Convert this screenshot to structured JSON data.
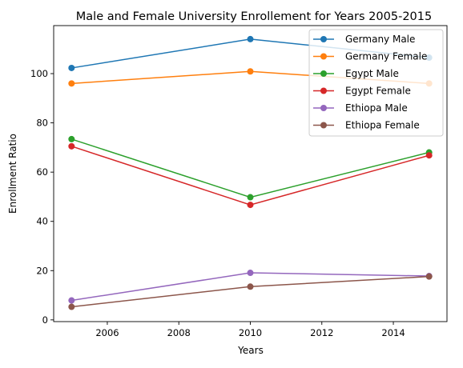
{
  "chart_data": {
    "type": "line",
    "title": "Male and Female University Enrollement for Years 2005-2015",
    "xlabel": "Years",
    "ylabel": "Enrollment Ratio",
    "x": [
      2005,
      2010,
      2015
    ],
    "xlim": [
      2004.5,
      2015.5
    ],
    "ylim": [
      -0.7,
      119.5
    ],
    "xticks": [
      2006,
      2008,
      2010,
      2012,
      2014
    ],
    "yticks": [
      0,
      20,
      40,
      60,
      80,
      100
    ],
    "grid": false,
    "legend_position": "top-right",
    "series": [
      {
        "name": "Germany Male",
        "color": "#1f77b4",
        "values": [
          102.3,
          114.0,
          106.5
        ]
      },
      {
        "name": "Germany Female",
        "color": "#ff7f0e",
        "values": [
          96.0,
          100.9,
          96.0
        ]
      },
      {
        "name": "Egypt Male",
        "color": "#2ca02c",
        "values": [
          73.4,
          49.8,
          68.0
        ]
      },
      {
        "name": "Egypt Female",
        "color": "#d62728",
        "values": [
          70.5,
          46.7,
          66.8
        ]
      },
      {
        "name": "Ethiopa Male",
        "color": "#9467bd",
        "values": [
          7.9,
          19.1,
          17.8
        ]
      },
      {
        "name": "Ethiopa Female",
        "color": "#8c564b",
        "values": [
          5.3,
          13.5,
          17.6
        ]
      }
    ]
  }
}
